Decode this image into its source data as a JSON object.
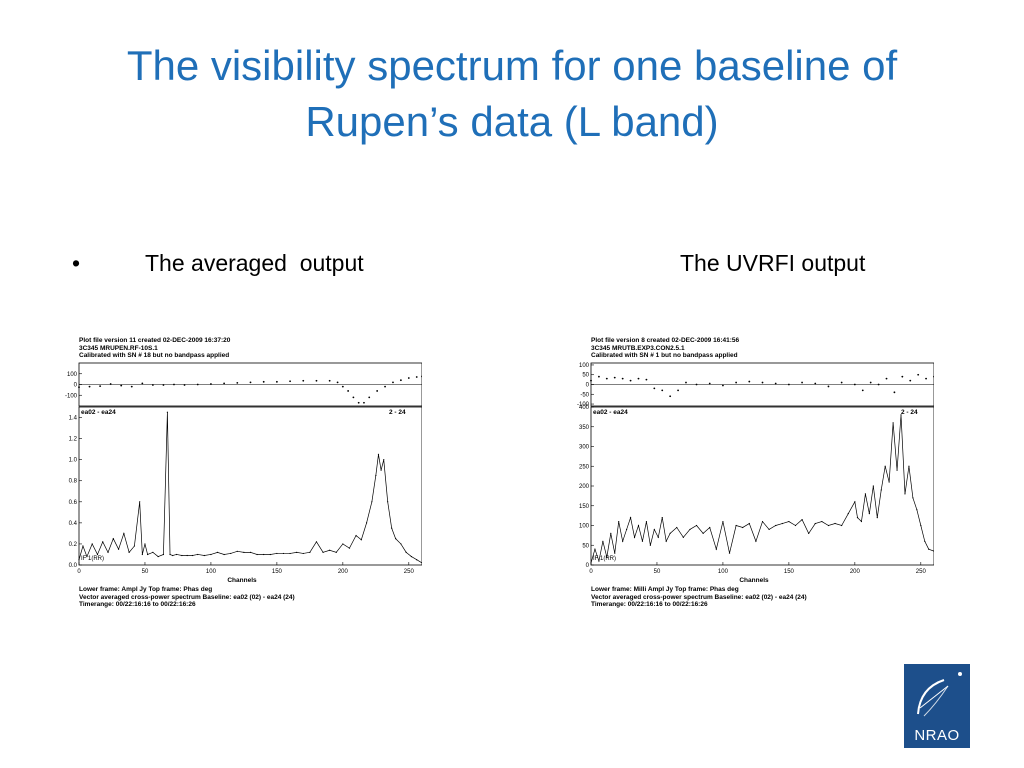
{
  "slide": {
    "title_line1": "The visibility spectrum for one baseline of",
    "title_line2": "Rupen’s data (L band)",
    "bullet": "•",
    "label_left": "The averaged  output",
    "label_right": "The UVRFI output",
    "logo_text": "NRAO"
  },
  "chart_data": [
    {
      "type": "line",
      "header": [
        "Plot file version 11  created 02-DEC-2009 16:37:20",
        "3C345   MRUPEN.RF-10S.1",
        "Calibrated with SN # 18 but no bandpass applied"
      ],
      "baseline_label": "ea02 - ea24",
      "baseline_num": "2 - 24",
      "stokes": "IF 1(RR)",
      "xlabel": "Channels",
      "footer": [
        "Lower frame: Ampl Jy    Top frame: Phas deg",
        "Vector averaged cross-power spectrum     Baseline: ea02 (02) - ea24 (24)",
        "Timerange: 00/22:16:16 to 00/22:16:26"
      ],
      "xlim": [
        0,
        260
      ],
      "xticks": [
        0,
        50,
        100,
        150,
        200,
        250
      ],
      "top": {
        "ylabel": "Phas deg",
        "ylim": [
          -200,
          200
        ],
        "yticks": [
          100,
          0,
          -100
        ],
        "x": [
          0,
          8,
          16,
          24,
          32,
          40,
          48,
          56,
          64,
          72,
          80,
          90,
          100,
          110,
          120,
          130,
          140,
          150,
          160,
          170,
          180,
          190,
          196,
          200,
          204,
          208,
          212,
          216,
          220,
          226,
          232,
          238,
          244,
          250,
          256,
          260
        ],
        "values": [
          -25,
          -20,
          -15,
          5,
          -10,
          -20,
          10,
          -5,
          -5,
          0,
          -5,
          0,
          5,
          10,
          15,
          20,
          25,
          25,
          30,
          35,
          35,
          35,
          20,
          -20,
          -60,
          -120,
          -170,
          -170,
          -120,
          -60,
          -20,
          20,
          40,
          60,
          70,
          75
        ]
      },
      "bottom": {
        "ylabel": "Ampl Jy",
        "ylim": [
          0,
          1.5
        ],
        "yticks": [
          0.0,
          0.2,
          0.4,
          0.6,
          0.8,
          1.0,
          1.2,
          1.4
        ],
        "x": [
          0,
          3,
          6,
          10,
          14,
          18,
          22,
          26,
          30,
          34,
          38,
          42,
          46,
          48,
          50,
          52,
          56,
          60,
          64,
          67,
          69,
          71,
          74,
          78,
          82,
          86,
          90,
          95,
          100,
          105,
          110,
          115,
          120,
          125,
          130,
          135,
          140,
          145,
          150,
          155,
          160,
          165,
          170,
          175,
          180,
          185,
          190,
          195,
          200,
          205,
          210,
          214,
          218,
          222,
          225,
          227,
          229,
          231,
          234,
          237,
          240,
          244,
          248,
          252,
          256,
          260
        ],
        "values": [
          0.05,
          0.18,
          0.08,
          0.2,
          0.1,
          0.22,
          0.12,
          0.25,
          0.15,
          0.3,
          0.12,
          0.18,
          0.6,
          0.1,
          0.2,
          0.1,
          0.12,
          0.08,
          0.1,
          1.45,
          0.1,
          0.09,
          0.1,
          0.09,
          0.09,
          0.09,
          0.1,
          0.09,
          0.1,
          0.12,
          0.1,
          0.11,
          0.13,
          0.12,
          0.12,
          0.1,
          0.1,
          0.1,
          0.11,
          0.11,
          0.11,
          0.12,
          0.11,
          0.12,
          0.22,
          0.12,
          0.14,
          0.12,
          0.2,
          0.16,
          0.28,
          0.24,
          0.4,
          0.6,
          0.85,
          1.05,
          0.9,
          1.0,
          0.6,
          0.35,
          0.25,
          0.2,
          0.12,
          0.08,
          0.05,
          0.02
        ]
      }
    },
    {
      "type": "line",
      "header": [
        "Plot file version 8  created 02-DEC-2009 16:41:56",
        "3C345   MRUTB.EXP3.CON2.5.1",
        "Calibrated with SN # 1 but no bandpass applied"
      ],
      "baseline_label": "ea02 - ea24",
      "baseline_num": "2 - 24",
      "stokes": "IF 1(RR)",
      "xlabel": "Channels",
      "footer": [
        "Lower frame: Milli Ampl Jy    Top frame: Phas deg",
        "Vector averaged cross-power spectrum     Baseline: ea02 (02) - ea24 (24)",
        "Timerange: 00/22:16:16 to 00/22:16:26"
      ],
      "xlim": [
        0,
        260
      ],
      "xticks": [
        0,
        50,
        100,
        150,
        200,
        250
      ],
      "top": {
        "ylabel": "Phas deg",
        "ylim": [
          -110,
          110
        ],
        "yticks": [
          100,
          50,
          0,
          -50,
          -100
        ],
        "x": [
          0,
          6,
          12,
          18,
          24,
          30,
          36,
          42,
          48,
          54,
          60,
          66,
          72,
          80,
          90,
          100,
          110,
          120,
          130,
          140,
          150,
          160,
          170,
          180,
          190,
          200,
          206,
          212,
          218,
          224,
          230,
          236,
          242,
          248,
          254,
          260
        ],
        "values": [
          20,
          40,
          30,
          35,
          30,
          20,
          30,
          25,
          -20,
          -30,
          -60,
          -30,
          10,
          0,
          5,
          -5,
          10,
          15,
          10,
          5,
          0,
          10,
          5,
          -10,
          10,
          0,
          -30,
          10,
          0,
          30,
          -40,
          40,
          20,
          50,
          30,
          40
        ]
      },
      "bottom": {
        "ylabel": "Milli Ampl Jy",
        "ylim": [
          0,
          400
        ],
        "yticks": [
          0,
          50,
          100,
          150,
          200,
          250,
          300,
          350,
          400
        ],
        "x": [
          0,
          3,
          6,
          9,
          12,
          15,
          18,
          21,
          24,
          27,
          30,
          33,
          36,
          39,
          42,
          45,
          48,
          51,
          54,
          57,
          60,
          65,
          70,
          75,
          80,
          85,
          90,
          95,
          100,
          105,
          110,
          115,
          120,
          125,
          130,
          135,
          140,
          145,
          150,
          155,
          160,
          165,
          170,
          175,
          180,
          185,
          190,
          195,
          200,
          202,
          205,
          208,
          211,
          214,
          217,
          220,
          223,
          226,
          229,
          232,
          235,
          238,
          241,
          244,
          247,
          250,
          253,
          256,
          260
        ],
        "values": [
          5,
          40,
          10,
          60,
          20,
          80,
          30,
          110,
          60,
          90,
          120,
          70,
          100,
          60,
          110,
          50,
          90,
          70,
          120,
          60,
          80,
          95,
          70,
          90,
          100,
          80,
          95,
          40,
          110,
          30,
          100,
          95,
          105,
          60,
          110,
          90,
          100,
          105,
          110,
          100,
          115,
          80,
          105,
          110,
          100,
          105,
          100,
          130,
          160,
          120,
          110,
          180,
          130,
          200,
          120,
          190,
          250,
          210,
          360,
          240,
          380,
          180,
          250,
          170,
          140,
          100,
          60,
          40,
          35
        ]
      }
    }
  ]
}
